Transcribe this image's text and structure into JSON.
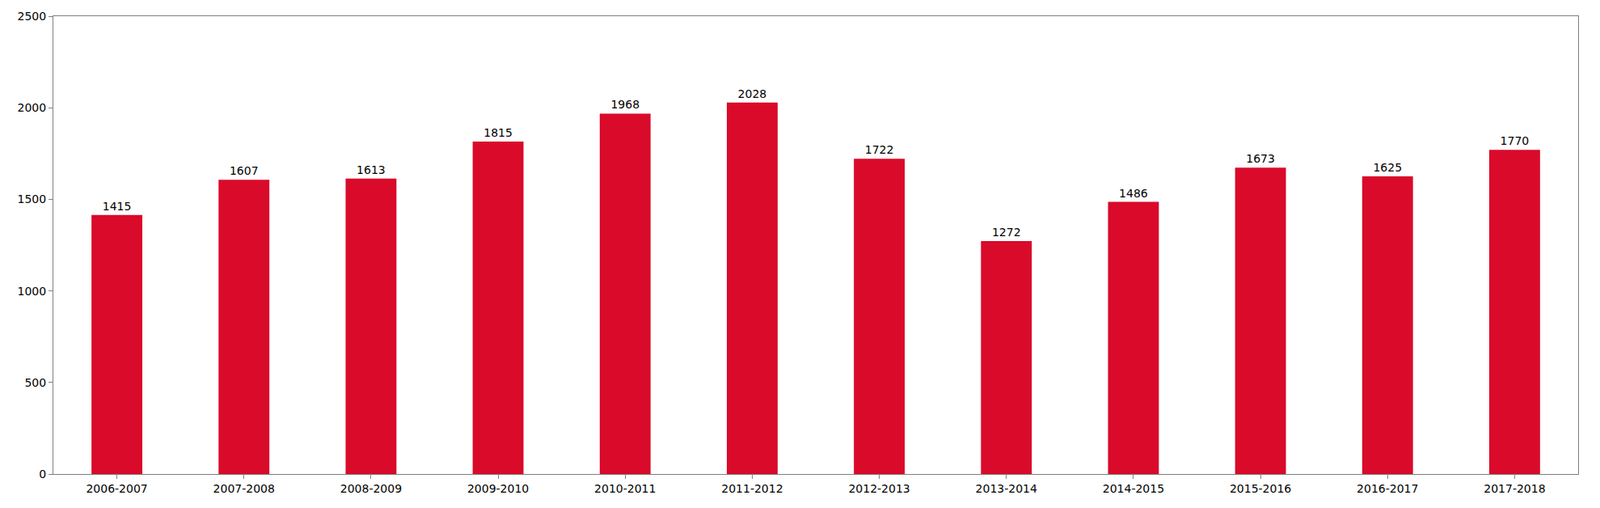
{
  "chart_data": {
    "type": "bar",
    "categories": [
      "2006-2007",
      "2007-2008",
      "2008-2009",
      "2009-2010",
      "2010-2011",
      "2011-2012",
      "2012-2013",
      "2013-2014",
      "2014-2015",
      "2015-2016",
      "2016-2017",
      "2017-2018"
    ],
    "values": [
      1415,
      1607,
      1613,
      1815,
      1968,
      2028,
      1722,
      1272,
      1486,
      1673,
      1625,
      1770
    ],
    "color": "#d90a2a",
    "ylim": [
      0,
      2500
    ],
    "yticks": [
      0,
      500,
      1000,
      1500,
      2000,
      2500
    ],
    "grid": false,
    "data_labels": true
  }
}
